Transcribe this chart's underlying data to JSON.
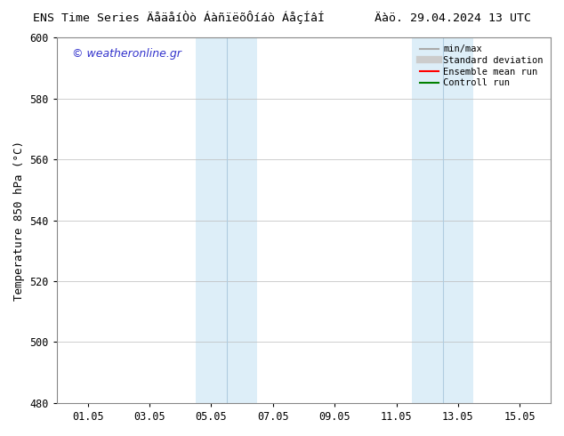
{
  "title_center": "ENS Time Series ÄåäåíÒò ÁàñïëõÔíáò ÁåçÍâÍ       Äàö. 29.04.2024 13 UTC",
  "ylabel": "Temperature 850 hPa (°C)",
  "ylim": [
    480,
    600
  ],
  "yticks": [
    480,
    500,
    520,
    540,
    560,
    580,
    600
  ],
  "xtick_labels": [
    "01.05",
    "03.05",
    "05.05",
    "07.05",
    "09.05",
    "11.05",
    "13.05",
    "15.05"
  ],
  "xtick_positions": [
    0,
    2,
    4,
    6,
    8,
    10,
    12,
    14
  ],
  "xmin": -1,
  "xmax": 15,
  "shaded_regions": [
    {
      "xmin": 3.5,
      "xmax": 4.5,
      "color": "#ddeef8"
    },
    {
      "xmin": 4.5,
      "xmax": 5.5,
      "color": "#ddeef8"
    },
    {
      "xmin": 10.5,
      "xmax": 11.5,
      "color": "#ddeef8"
    },
    {
      "xmin": 11.5,
      "xmax": 12.5,
      "color": "#ddeef8"
    }
  ],
  "dividers": [
    4.5,
    11.5
  ],
  "background_color": "#ffffff",
  "plot_bg_color": "#ffffff",
  "watermark": "© weatheronline.gr",
  "watermark_color": "#3333cc",
  "legend_items": [
    {
      "label": "min/max",
      "color": "#aaaaaa",
      "lw": 1.5,
      "style": "solid"
    },
    {
      "label": "Standard deviation",
      "color": "#cccccc",
      "lw": 6,
      "style": "solid"
    },
    {
      "label": "Ensemble mean run",
      "color": "#ff0000",
      "lw": 1.5,
      "style": "solid"
    },
    {
      "label": "Controll run",
      "color": "#008000",
      "lw": 1.5,
      "style": "solid"
    }
  ],
  "grid_color": "#bbbbbb",
  "spine_color": "#888888",
  "tick_fontsize": 8.5,
  "label_fontsize": 9,
  "title_fontsize": 9.5,
  "watermark_fontsize": 9
}
